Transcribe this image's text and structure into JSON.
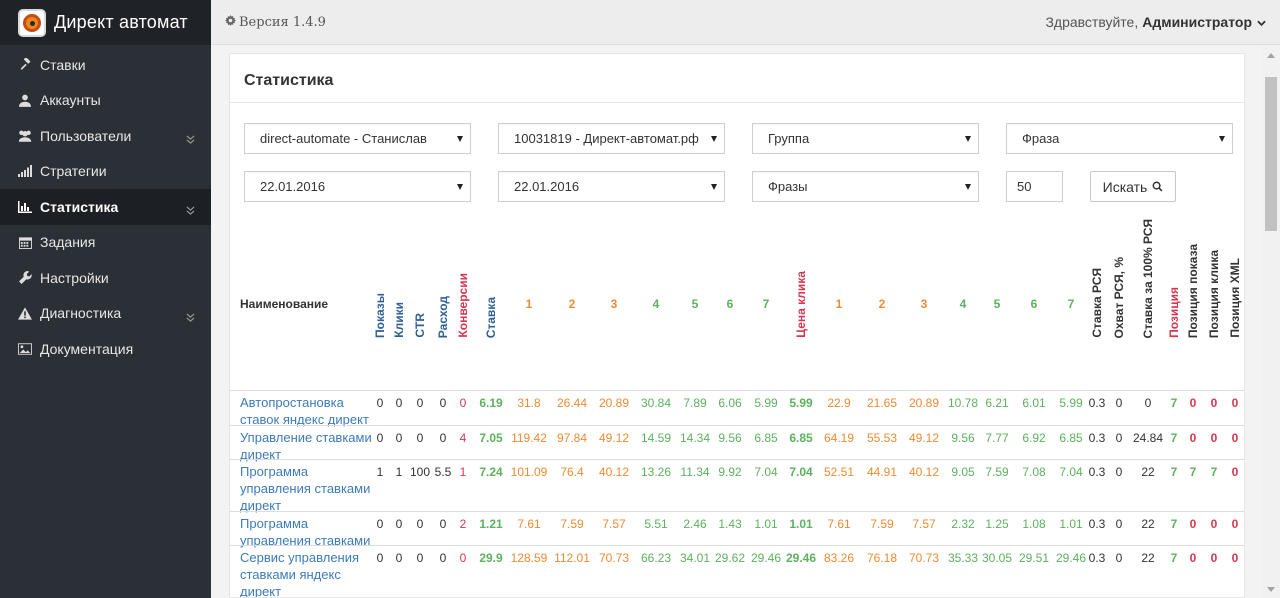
{
  "app": {
    "title": "Директ автомат"
  },
  "sidebar": {
    "items": [
      {
        "label": "Ставки",
        "icon": "gavel-icon",
        "active": false,
        "has_submenu": false
      },
      {
        "label": "Аккаунты",
        "icon": "user-icon",
        "active": false,
        "has_submenu": false
      },
      {
        "label": "Пользователи",
        "icon": "users-icon",
        "active": false,
        "has_submenu": true
      },
      {
        "label": "Стратегии",
        "icon": "signal-icon",
        "active": false,
        "has_submenu": false
      },
      {
        "label": "Статистика",
        "icon": "bar-chart-icon",
        "active": true,
        "has_submenu": true
      },
      {
        "label": "Задания",
        "icon": "calendar-icon",
        "active": false,
        "has_submenu": false
      },
      {
        "label": "Настройки",
        "icon": "wrench-icon",
        "active": false,
        "has_submenu": false
      },
      {
        "label": "Диагностика",
        "icon": "warning-icon",
        "active": false,
        "has_submenu": true
      },
      {
        "label": "Документация",
        "icon": "image-icon",
        "active": false,
        "has_submenu": false
      }
    ]
  },
  "header": {
    "version": "Версия 1.4.9",
    "greeting": "Здравствуйте,",
    "user": "Администратор"
  },
  "panel": {
    "title": "Статистика"
  },
  "filters": {
    "account": "direct-automate - Станислав",
    "campaign": "10031819 - Директ-автомат.рф",
    "group": "Группа",
    "phrase": "Фраза",
    "date_from": "22.01.2016",
    "date_to": "22.01.2016",
    "type": "Фразы",
    "limit": "50",
    "search_label": "Искать"
  },
  "table": {
    "name_header": "Наименование",
    "headers": {
      "shows": "Показы",
      "clicks": "Клики",
      "ctr": "CTR",
      "spend": "Расход",
      "conversions": "Конверсии",
      "bid": "Ставка",
      "bid_positions": [
        "1",
        "2",
        "3",
        "4",
        "5",
        "6",
        "7"
      ],
      "click_price": "Цена клика",
      "price_positions": [
        "1",
        "2",
        "3",
        "4",
        "5",
        "6",
        "7"
      ],
      "rsya_bid": "Ставка РСЯ",
      "rsya_reach": "Охват РСЯ, %",
      "rsya_full_bid": "Ставка за 100% РСЯ",
      "position": "Позиция",
      "show_position": "Позиция показа",
      "click_position": "Позиция клика",
      "xml_position": "Позиция XML"
    },
    "rows": [
      {
        "name": "Автопростановка ставок яндекс директ",
        "shows": "0",
        "clicks": "0",
        "ctr": "0",
        "spend": "0",
        "conv": "0",
        "bid": "6.19",
        "b": [
          "31.8",
          "26.44",
          "20.89",
          "30.84",
          "7.89",
          "6.06",
          "5.99"
        ],
        "price": "5.99",
        "p": [
          "22.9",
          "21.65",
          "20.89",
          "10.78",
          "6.21",
          "6.01",
          "5.99"
        ],
        "rsya": "0.3",
        "reach": "0",
        "full": "0",
        "pos": "7",
        "spos": "0",
        "cpos": "0",
        "xpos": "0"
      },
      {
        "name": "Управление ставками директ",
        "shows": "0",
        "clicks": "0",
        "ctr": "0",
        "spend": "0",
        "conv": "4",
        "bid": "7.05",
        "b": [
          "119.42",
          "97.84",
          "49.12",
          "14.59",
          "14.34",
          "9.56",
          "6.85"
        ],
        "price": "6.85",
        "p": [
          "64.19",
          "55.53",
          "49.12",
          "9.56",
          "7.77",
          "6.92",
          "6.85"
        ],
        "rsya": "0.3",
        "reach": "0",
        "full": "24.84",
        "pos": "7",
        "spos": "0",
        "cpos": "0",
        "xpos": "0"
      },
      {
        "name": "Программа управления ставками директ",
        "shows": "1",
        "clicks": "1",
        "ctr": "100",
        "spend": "5.5",
        "conv": "1",
        "bid": "7.24",
        "b": [
          "101.09",
          "76.4",
          "40.12",
          "13.26",
          "11.34",
          "9.92",
          "7.04"
        ],
        "price": "7.04",
        "p": [
          "52.51",
          "44.91",
          "40.12",
          "9.05",
          "7.59",
          "7.08",
          "7.04"
        ],
        "rsya": "0.3",
        "reach": "0",
        "full": "22",
        "pos": "7",
        "spos": "7",
        "cpos": "7",
        "xpos": "0"
      },
      {
        "name": "Программа управления ставками",
        "shows": "0",
        "clicks": "0",
        "ctr": "0",
        "spend": "0",
        "conv": "2",
        "bid": "1.21",
        "b": [
          "7.61",
          "7.59",
          "7.57",
          "5.51",
          "2.46",
          "1.43",
          "1.01"
        ],
        "price": "1.01",
        "p": [
          "7.61",
          "7.59",
          "7.57",
          "2.32",
          "1.25",
          "1.08",
          "1.01"
        ],
        "rsya": "0.3",
        "reach": "0",
        "full": "22",
        "pos": "7",
        "spos": "0",
        "cpos": "0",
        "xpos": "0"
      },
      {
        "name": "Сервис управления ставками яндекс директ",
        "shows": "0",
        "clicks": "0",
        "ctr": "0",
        "spend": "0",
        "conv": "0",
        "bid": "29.9",
        "b": [
          "128.59",
          "112.01",
          "70.73",
          "66.23",
          "34.01",
          "29.62",
          "29.46"
        ],
        "price": "29.46",
        "p": [
          "83.26",
          "76.18",
          "70.73",
          "35.33",
          "30.05",
          "29.51",
          "29.46"
        ],
        "rsya": "0.3",
        "reach": "0",
        "full": "22",
        "pos": "7",
        "spos": "0",
        "cpos": "0",
        "xpos": "0"
      }
    ]
  },
  "colors": {
    "sidebar_bg": "#2b2f36",
    "link": "#3d7bb9",
    "orange": "#ee8a33",
    "green": "#5cb25d",
    "red": "#d7364f",
    "blue_header": "#2f5f95"
  }
}
